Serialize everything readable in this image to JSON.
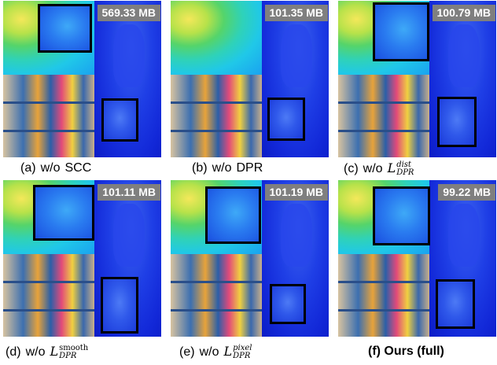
{
  "panels": [
    {
      "size": "569.33 MB",
      "caption_prefix": "(a)",
      "caption_wo": "w/o",
      "caption_term": "SCC"
    },
    {
      "size": "101.35 MB",
      "caption_prefix": "(b)",
      "caption_wo": "w/o",
      "caption_term": "DPR"
    },
    {
      "size": "100.79 MB",
      "caption_prefix": "(c)",
      "caption_wo": "w/o",
      "caption_math_base": "L",
      "caption_math_sup": "dist",
      "caption_math_sub": "DPR"
    },
    {
      "size": "101.11 MB",
      "caption_prefix": "(d)",
      "caption_wo": "w/o",
      "caption_math_base": "L",
      "caption_math_sup": "smooth",
      "caption_math_sub": "DPR"
    },
    {
      "size": "101.19 MB",
      "caption_prefix": "(e)",
      "caption_wo": "w/o",
      "caption_math_base": "L",
      "caption_math_sup": "pixel",
      "caption_math_sub": "DPR"
    },
    {
      "size": "99.22 MB",
      "caption_full": "(f) Ours (full)"
    }
  ]
}
